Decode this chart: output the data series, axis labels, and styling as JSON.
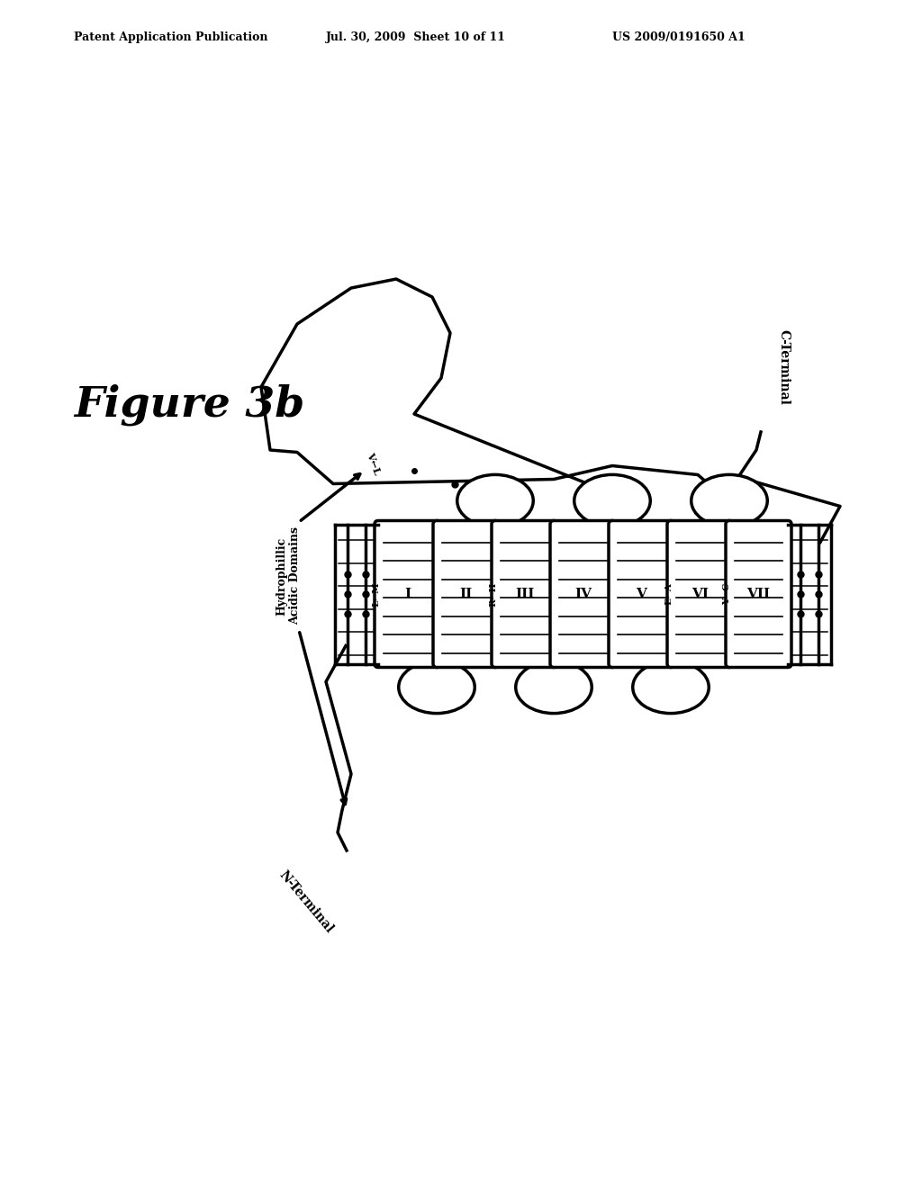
{
  "header_left": "Patent Application Publication",
  "header_center": "Jul. 30, 2009  Sheet 10 of 11",
  "header_right": "US 2009/0191650 A1",
  "title": "Figure 3b",
  "domains": [
    "I",
    "II",
    "III",
    "IV",
    "V",
    "VI",
    "VII"
  ],
  "bg_color": "#ffffff",
  "line_color": "#000000",
  "n_terminal_label": "N-Terminal",
  "c_terminal_label": "C-Terminal",
  "hydrophilic_label": "Hydrophillic\nAcidic Domains"
}
